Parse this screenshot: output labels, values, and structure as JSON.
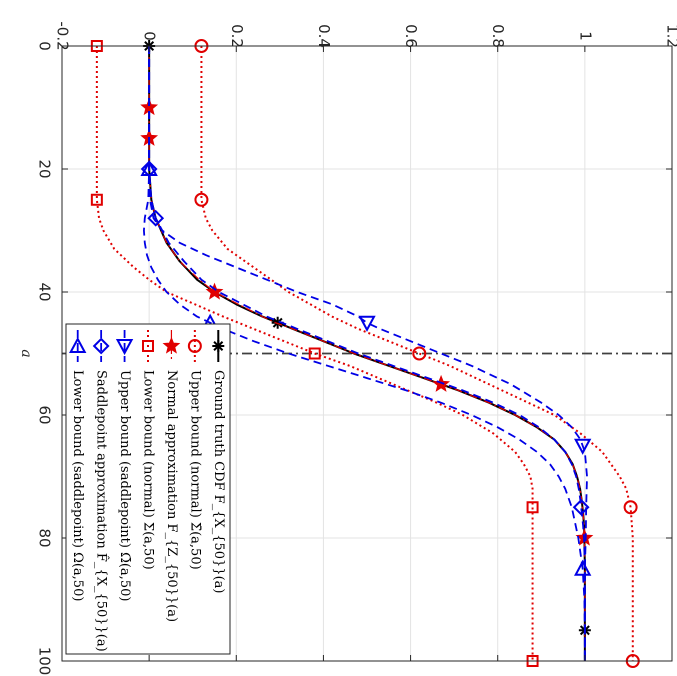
{
  "chart_data": {
    "type": "line",
    "orientation": "rotated-90-cw",
    "xlabel": "a",
    "xlim": [
      0,
      100
    ],
    "ylim": [
      -0.2,
      1.2
    ],
    "x_ticks": [
      0,
      20,
      40,
      60,
      80,
      100
    ],
    "y_ticks": [
      -0.2,
      0,
      0.2,
      0.4,
      0.6,
      0.8,
      1,
      1.2
    ],
    "x_tick_labels": [
      "0",
      "20",
      "40",
      "60",
      "80",
      "100"
    ],
    "y_tick_labels": [
      "-0.2",
      "0",
      "0.2",
      "0.4",
      "0.6",
      "0.8",
      "1",
      "1.2"
    ],
    "grid": true,
    "vline": {
      "x": 50,
      "color": "#404040",
      "style": "dash-dot"
    },
    "legend": {
      "location": "lower-left",
      "entries": [
        "Ground truth CDF F_{X_{50}}(a)",
        "Upper bound (normal) Σ̄(a,50)",
        "Normal approximation F_{Z_{50}}(a)",
        "Lower bound (normal) Σ(a,50)",
        "Upper bound (saddlepoint) Ω̄(a,50)",
        "Saddlepoint approximation F̂_{X_{50}}(a)",
        "Lower bound (saddlepoint) Ω(a,50)"
      ]
    },
    "series": [
      {
        "key": "truth",
        "color": "#000000",
        "style": "solid",
        "width": 2,
        "marker": "asterisk",
        "x": [
          0,
          5,
          10,
          15,
          20,
          25,
          28,
          32,
          35,
          38,
          40,
          42,
          44,
          45,
          46,
          48,
          50,
          52,
          54,
          55,
          56,
          58,
          60,
          62,
          64,
          66,
          68,
          70,
          72,
          74,
          76,
          78,
          80,
          85,
          90,
          95,
          100
        ],
        "y": [
          0,
          0,
          0,
          0,
          0,
          0.005,
          0.015,
          0.04,
          0.07,
          0.11,
          0.15,
          0.2,
          0.26,
          0.295,
          0.33,
          0.4,
          0.47,
          0.55,
          0.63,
          0.67,
          0.71,
          0.78,
          0.84,
          0.89,
          0.93,
          0.955,
          0.972,
          0.982,
          0.989,
          0.993,
          0.996,
          0.998,
          0.999,
          1,
          1,
          1,
          1
        ],
        "marker_x": [
          0,
          45,
          95
        ]
      },
      {
        "key": "upper-normal",
        "color": "#e00000",
        "style": "dotted",
        "width": 2,
        "marker": "circle",
        "x": [
          0,
          10,
          20,
          25,
          28,
          30,
          33,
          36,
          40,
          44,
          46,
          48,
          50,
          52,
          55,
          58,
          60,
          63,
          66,
          70,
          72,
          75,
          80,
          85,
          90,
          95,
          100
        ],
        "y": [
          0.12,
          0.12,
          0.12,
          0.12,
          0.13,
          0.145,
          0.18,
          0.24,
          0.32,
          0.42,
          0.48,
          0.55,
          0.62,
          0.69,
          0.78,
          0.87,
          0.93,
          0.99,
          1.04,
          1.08,
          1.095,
          1.105,
          1.11,
          1.11,
          1.11,
          1.11,
          1.11
        ],
        "marker_x": [
          0,
          25,
          50,
          75,
          100
        ]
      },
      {
        "key": "normal-approx",
        "color": "#e00000",
        "style": "dashdot",
        "width": 1.2,
        "marker": "star",
        "x": [
          0,
          5,
          10,
          15,
          20,
          25,
          28,
          32,
          35,
          38,
          40,
          42,
          44,
          45,
          46,
          48,
          50,
          52,
          54,
          55,
          56,
          58,
          60,
          62,
          64,
          66,
          68,
          70,
          72,
          74,
          76,
          78,
          80,
          85,
          90,
          95,
          100
        ],
        "y": [
          0,
          0,
          0,
          0,
          0,
          0.005,
          0.015,
          0.04,
          0.07,
          0.115,
          0.15,
          0.205,
          0.26,
          0.29,
          0.33,
          0.4,
          0.47,
          0.55,
          0.63,
          0.67,
          0.71,
          0.78,
          0.84,
          0.89,
          0.93,
          0.955,
          0.972,
          0.982,
          0.989,
          0.993,
          0.996,
          0.998,
          0.999,
          1,
          1,
          1,
          1
        ],
        "marker_x": [
          10,
          15,
          40,
          55,
          80
        ]
      },
      {
        "key": "lower-normal",
        "color": "#e00000",
        "style": "dotted",
        "width": 2,
        "marker": "square",
        "x": [
          0,
          10,
          20,
          25,
          28,
          30,
          33,
          36,
          38,
          40,
          44,
          46,
          48,
          50,
          52,
          55,
          58,
          60,
          63,
          66,
          68,
          70,
          72,
          75,
          80,
          85,
          90,
          95,
          100
        ],
        "y": [
          -0.12,
          -0.12,
          -0.12,
          -0.12,
          -0.115,
          -0.105,
          -0.08,
          -0.035,
          0.0,
          0.04,
          0.17,
          0.24,
          0.31,
          0.38,
          0.46,
          0.56,
          0.66,
          0.72,
          0.79,
          0.84,
          0.86,
          0.875,
          0.88,
          0.88,
          0.88,
          0.88,
          0.88,
          0.88,
          0.88
        ],
        "marker_x": [
          0,
          25,
          50,
          75,
          100
        ]
      },
      {
        "key": "upper-saddle",
        "color": "#0000e6",
        "style": "dashed",
        "width": 1.8,
        "marker": "triangle-right",
        "x": [
          0,
          10,
          20,
          25,
          28,
          30,
          32,
          34,
          36,
          38,
          40,
          42,
          44,
          45,
          46,
          48,
          50,
          52,
          55,
          58,
          60,
          62,
          64,
          66,
          70,
          75,
          80,
          85,
          90,
          95,
          100
        ],
        "y": [
          0,
          0,
          0,
          0.002,
          0.01,
          0.03,
          0.07,
          0.13,
          0.2,
          0.27,
          0.34,
          0.42,
          0.48,
          0.5,
          0.53,
          0.6,
          0.67,
          0.74,
          0.83,
          0.9,
          0.94,
          0.97,
          0.99,
          1.0,
          1.005,
          1.003,
          1.002,
          1.0,
          1.0,
          1.0,
          1.0
        ],
        "marker_x": [
          45,
          65
        ]
      },
      {
        "key": "saddle-approx",
        "color": "#0000e6",
        "style": "dashed",
        "width": 1.8,
        "marker": "diamond",
        "x": [
          0,
          5,
          10,
          15,
          20,
          25,
          28,
          32,
          35,
          38,
          40,
          42,
          44,
          46,
          48,
          50,
          52,
          54,
          56,
          58,
          60,
          62,
          64,
          66,
          68,
          70,
          72,
          74,
          76,
          78,
          80,
          85,
          90,
          95,
          100
        ],
        "y": [
          0,
          0,
          0,
          0,
          0,
          0.005,
          0.015,
          0.045,
          0.08,
          0.12,
          0.16,
          0.215,
          0.27,
          0.34,
          0.41,
          0.48,
          0.56,
          0.64,
          0.72,
          0.79,
          0.85,
          0.895,
          0.93,
          0.955,
          0.97,
          0.98,
          0.986,
          0.99,
          0.993,
          0.996,
          0.998,
          1,
          1,
          1,
          1
        ],
        "marker_x": [
          20,
          28,
          75
        ]
      },
      {
        "key": "lower-saddle",
        "color": "#0000e6",
        "style": "dashed",
        "width": 1.8,
        "marker": "triangle-left",
        "x": [
          0,
          10,
          20,
          25,
          28,
          30,
          32,
          34,
          36,
          38,
          40,
          42,
          44,
          46,
          48,
          50,
          52,
          54,
          56,
          58,
          60,
          62,
          64,
          66,
          68,
          70,
          72,
          75,
          80,
          85,
          90,
          95,
          100
        ],
        "y": [
          0,
          0,
          0,
          -0.002,
          -0.01,
          -0.012,
          -0.01,
          -0.005,
          0.005,
          0.02,
          0.04,
          0.07,
          0.11,
          0.17,
          0.24,
          0.32,
          0.41,
          0.5,
          0.59,
          0.67,
          0.74,
          0.8,
          0.85,
          0.89,
          0.92,
          0.94,
          0.955,
          0.97,
          0.985,
          0.995,
          0.999,
          1,
          1
        ],
        "marker_x": [
          20,
          45,
          85
        ]
      }
    ]
  }
}
